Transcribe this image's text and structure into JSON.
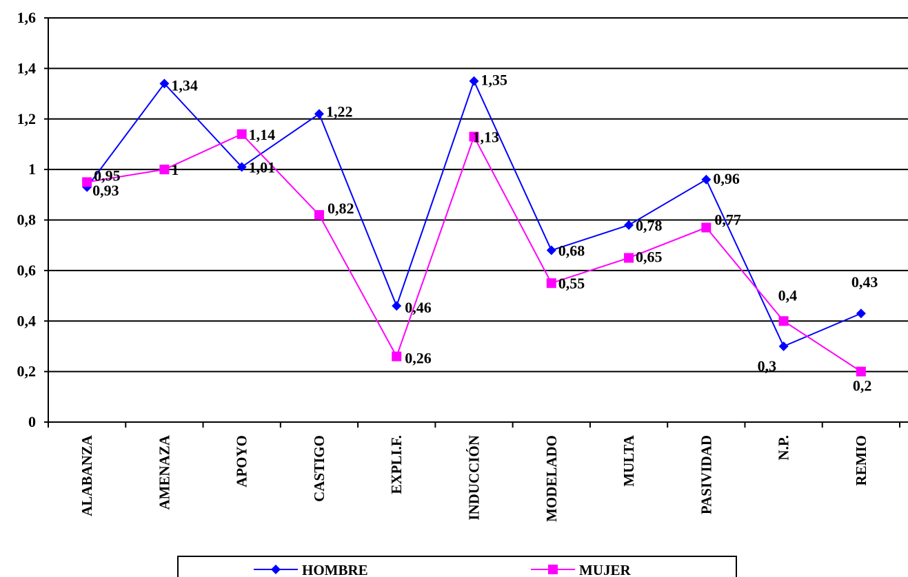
{
  "chart_data": {
    "type": "line",
    "title": "",
    "xlabel": "",
    "ylabel": "",
    "categories": [
      "ALABANZA",
      "AMENAZA",
      "APOYO",
      "CASTIGO",
      "EXPLI.F.",
      "INDUCCIÓN",
      "MODELADO",
      "MULTA",
      "PASIVIDAD",
      "N.P.",
      "REMIO"
    ],
    "ylim": [
      0,
      1.6
    ],
    "yticks": [
      "0",
      "0,2",
      "0,4",
      "0,6",
      "0,8",
      "1",
      "1,2",
      "1,4",
      "1,6"
    ],
    "grid": "horizontal",
    "legend_position": "bottom",
    "series": [
      {
        "name": "HOMBRE",
        "color": "#0000ff",
        "marker": "diamond",
        "values": [
          0.93,
          1.34,
          1.01,
          1.22,
          0.46,
          1.35,
          0.68,
          0.78,
          0.96,
          0.3,
          0.43
        ],
        "labels": [
          "0,93",
          "1,34",
          "1,01",
          "1,22",
          "0,46",
          "1,35",
          "0,68",
          "0,78",
          "0,96",
          "0,3",
          "0,43"
        ]
      },
      {
        "name": "MUJER",
        "color": "#ff00ff",
        "marker": "square",
        "values": [
          0.95,
          1.0,
          1.14,
          0.82,
          0.26,
          1.13,
          0.55,
          0.65,
          0.77,
          0.4,
          0.2
        ],
        "labels": [
          "0,95",
          "1",
          "1,14",
          "0,82",
          "0,26",
          "1,13",
          "0,55",
          "0,65",
          "0,77",
          "0,4",
          "0,2"
        ]
      }
    ]
  }
}
